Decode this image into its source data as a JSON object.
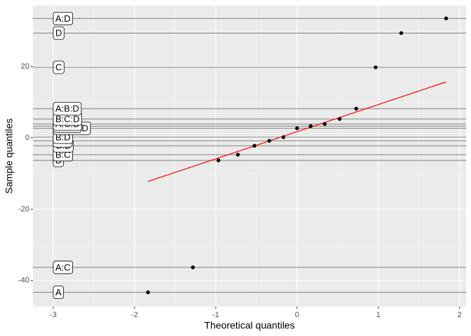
{
  "chart_data": {
    "type": "qq",
    "x_label": "Theoretical quantiles",
    "y_label": "Sample quantiles",
    "x": [
      -1.834,
      -1.282,
      -0.967,
      -0.728,
      -0.524,
      -0.341,
      -0.168,
      0,
      0.168,
      0.341,
      0.524,
      0.728,
      0.967,
      1.282,
      1.834
    ],
    "values": [
      -43.3,
      -36.3,
      -6.3,
      -4.7,
      -2.2,
      -0.8,
      0.2,
      2.7,
      3.3,
      3.9,
      5.3,
      8.2,
      19.8,
      29.4,
      33.5
    ],
    "labels": [
      "A",
      "A:C",
      "B",
      "B:C",
      "C:D",
      "A:B",
      "B:D",
      "A:B:C:D",
      "A:B:C",
      "A:C:D",
      "B:C:D",
      "A:B:D",
      "C",
      "D",
      "A:D"
    ],
    "label_x": -3,
    "point_color": "#000000",
    "hline_color": "#7F7F7F",
    "qqline": {
      "x": [
        -1.834,
        1.834
      ],
      "y": [
        -12.2,
        15.7
      ],
      "color": "#FF0000"
    },
    "xlim": [
      -3.25,
      2.08
    ],
    "ylim": [
      -47.3,
      37.1
    ],
    "xticks": [
      -3,
      -2,
      -1,
      0,
      1,
      2
    ],
    "yticks": [
      -40,
      -20,
      0,
      20
    ],
    "grid": true
  }
}
